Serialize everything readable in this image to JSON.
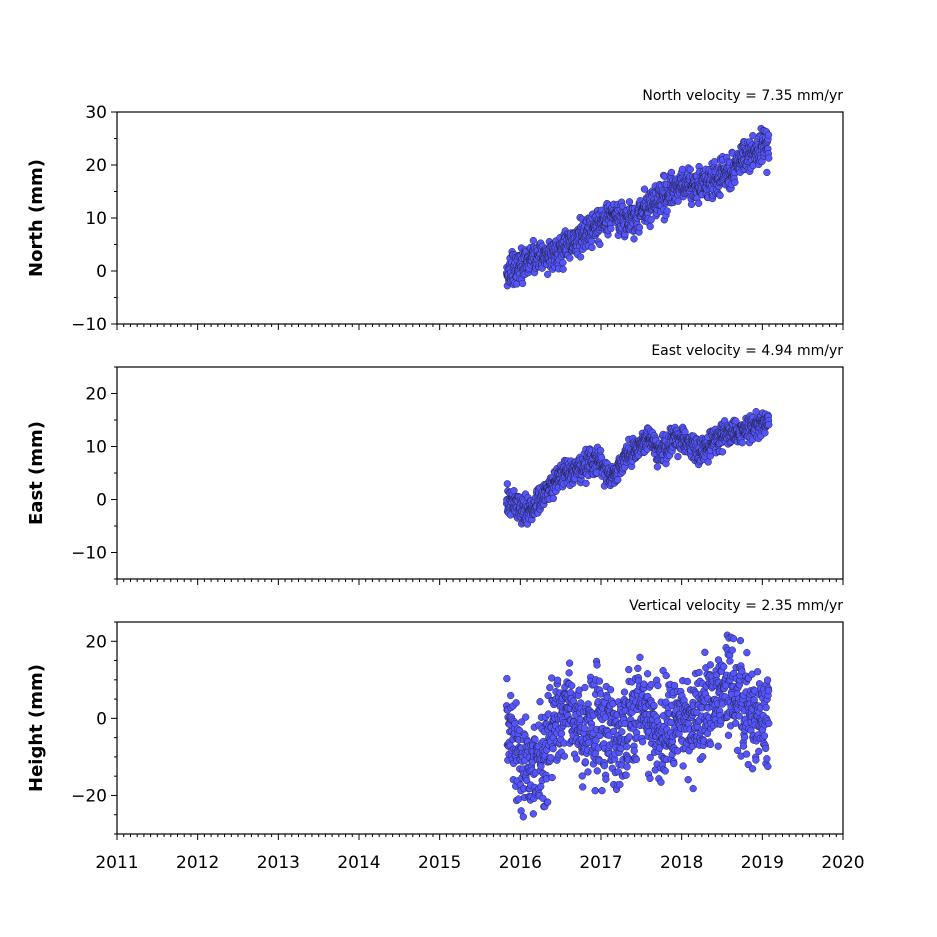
{
  "chart_data": [
    {
      "type": "scatter",
      "ylabel": "North (mm)",
      "annotation": "North velocity = 7.35 mm/yr",
      "xlim": [
        2011,
        2020
      ],
      "ylim": [
        -10,
        30
      ],
      "yticks": [
        -10,
        0,
        10,
        20,
        30
      ],
      "yticklabels": [
        "−10",
        "0",
        "10",
        "20",
        "30"
      ],
      "velocity_mm_per_yr": 7.35,
      "marker_color": "#5555ff",
      "series": [
        {
          "x": [
            2015.83,
            2015.9,
            2016.0,
            2016.1,
            2016.2,
            2016.3,
            2016.4,
            2016.5,
            2016.6,
            2016.7,
            2016.8,
            2016.9,
            2017.0,
            2017.1,
            2017.2,
            2017.3,
            2017.4,
            2017.5,
            2017.6,
            2017.7,
            2017.8,
            2017.9,
            2018.0,
            2018.1,
            2018.2,
            2018.3,
            2018.4,
            2018.5,
            2018.6,
            2018.7,
            2018.8,
            2018.9,
            2019.0,
            2019.08
          ],
          "y": [
            -1.0,
            0.0,
            1.0,
            2.0,
            2.5,
            2.5,
            3.0,
            4.0,
            5.0,
            6.0,
            7.0,
            8.0,
            9.0,
            10.0,
            10.0,
            9.5,
            10.0,
            11.0,
            12.0,
            13.5,
            14.5,
            15.5,
            16.0,
            16.5,
            16.0,
            16.5,
            17.0,
            18.0,
            19.0,
            20.5,
            21.5,
            22.5,
            23.5,
            24.0
          ],
          "scatter_mm": 1.5
        }
      ]
    },
    {
      "type": "scatter",
      "ylabel": "East (mm)",
      "annotation": "East velocity = 4.94 mm/yr",
      "xlim": [
        2011,
        2020
      ],
      "ylim": [
        -15,
        25
      ],
      "yticks": [
        -10,
        0,
        10,
        20
      ],
      "yticklabels": [
        "−10",
        "0",
        "10",
        "20"
      ],
      "velocity_mm_per_yr": 4.94,
      "marker_color": "#5555ff",
      "series": [
        {
          "x": [
            2015.83,
            2015.9,
            2016.0,
            2016.1,
            2016.2,
            2016.3,
            2016.4,
            2016.5,
            2016.6,
            2016.7,
            2016.8,
            2016.9,
            2017.0,
            2017.1,
            2017.2,
            2017.3,
            2017.4,
            2017.5,
            2017.6,
            2017.7,
            2017.8,
            2017.9,
            2018.0,
            2018.1,
            2018.2,
            2018.3,
            2018.4,
            2018.5,
            2018.6,
            2018.7,
            2018.8,
            2018.9,
            2019.0,
            2019.08
          ],
          "y": [
            0.0,
            -0.5,
            -2.0,
            -2.5,
            -1.0,
            1.0,
            3.0,
            4.5,
            5.5,
            5.5,
            6.5,
            7.5,
            7.0,
            4.5,
            5.0,
            8.0,
            9.0,
            10.5,
            11.0,
            10.0,
            9.5,
            11.0,
            11.5,
            10.5,
            9.0,
            9.5,
            11.0,
            12.0,
            12.5,
            12.5,
            13.0,
            14.0,
            14.5,
            15.0
          ],
          "scatter_mm": 1.2
        }
      ]
    },
    {
      "type": "scatter",
      "ylabel": "Height (mm)",
      "annotation": "Vertical velocity = 2.35 mm/yr",
      "xlim": [
        2011,
        2020
      ],
      "ylim": [
        -30,
        25
      ],
      "yticks": [
        -20,
        0,
        20
      ],
      "yticklabels": [
        "−20",
        "0",
        "20"
      ],
      "velocity_mm_per_yr": 2.35,
      "marker_color": "#5555ff",
      "series": [
        {
          "x": [
            2015.83,
            2015.9,
            2016.0,
            2016.1,
            2016.2,
            2016.3,
            2016.4,
            2016.5,
            2016.6,
            2016.7,
            2016.8,
            2016.9,
            2017.0,
            2017.1,
            2017.2,
            2017.3,
            2017.4,
            2017.5,
            2017.6,
            2017.7,
            2017.8,
            2017.9,
            2018.0,
            2018.1,
            2018.2,
            2018.3,
            2018.4,
            2018.5,
            2018.6,
            2018.7,
            2018.8,
            2018.9,
            2019.0,
            2019.08
          ],
          "y": [
            0.0,
            -3.0,
            -10.0,
            -12.0,
            -12.0,
            -7.0,
            -3.0,
            0.0,
            3.0,
            -1.0,
            -3.0,
            -1.0,
            -1.0,
            -4.0,
            -5.0,
            -4.0,
            0.0,
            3.0,
            0.0,
            -6.0,
            -3.0,
            -1.0,
            -1.0,
            -2.0,
            -3.0,
            3.0,
            5.0,
            7.0,
            6.0,
            5.0,
            2.0,
            0.0,
            1.0,
            2.0
          ],
          "scatter_mm": 6.0
        }
      ]
    }
  ],
  "x_axis": {
    "ticks": [
      2011,
      2012,
      2013,
      2014,
      2015,
      2016,
      2017,
      2018,
      2019,
      2020
    ],
    "ticklabels": [
      "2011",
      "2012",
      "2013",
      "2014",
      "2015",
      "2016",
      "2017",
      "2018",
      "2019",
      "2020"
    ]
  }
}
